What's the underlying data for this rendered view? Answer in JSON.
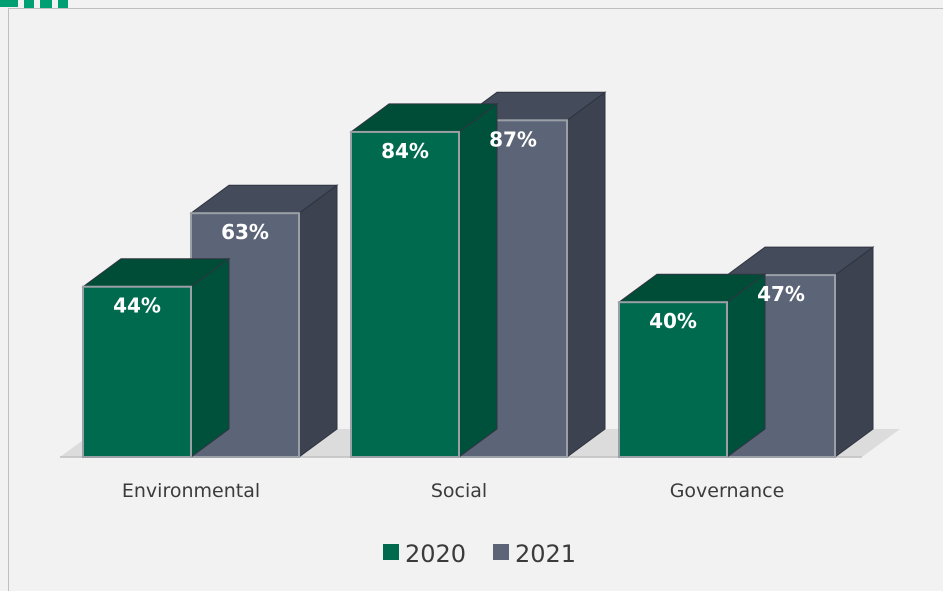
{
  "chart_data": {
    "type": "bar",
    "style": "3d-clustered-column",
    "categories": [
      "Environmental",
      "Social",
      "Governance"
    ],
    "series": [
      {
        "name": "2020",
        "values": [
          44,
          84,
          40
        ],
        "labels": [
          "44%",
          "84%",
          "40%"
        ],
        "color": "#006a4e",
        "top_color": "#004d37",
        "side_color": "#00513b"
      },
      {
        "name": "2021",
        "values": [
          63,
          87,
          47
        ],
        "labels": [
          "63%",
          "87%",
          "47%"
        ],
        "color": "#5c6477",
        "top_color": "#444b5a",
        "side_color": "#3c4250"
      }
    ],
    "ylim": [
      0,
      100
    ],
    "grid": false,
    "legend": "bottom"
  },
  "colors": {
    "background": "#f2f2f2",
    "border": "#bfbfbf",
    "corner_accent": "#00a072",
    "floor": "#d9d9d9"
  }
}
